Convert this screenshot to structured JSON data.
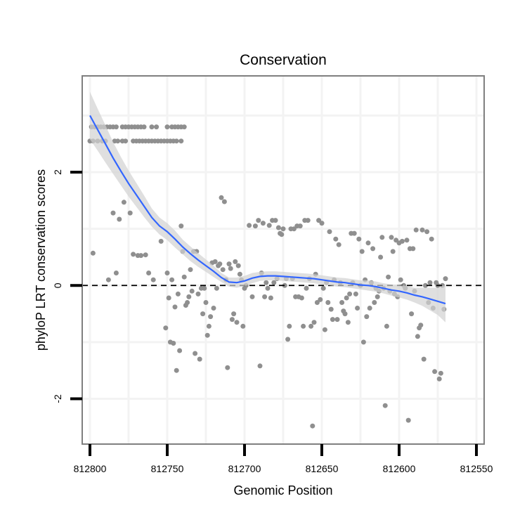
{
  "chart_data": {
    "type": "scatter",
    "title": "Conservation",
    "xlabel": "Genomic Position",
    "ylabel": "phyloP LRT conservation scores",
    "xlim": [
      812805,
      812545
    ],
    "x_reversed": true,
    "ylim": [
      -2.8,
      3.7
    ],
    "x_ticks": [
      812800,
      812750,
      812700,
      812650,
      812600,
      812550
    ],
    "x_tick_labels": [
      "812800",
      "812750",
      "812700",
      "812650",
      "812600",
      "812550"
    ],
    "y_ticks": [
      -2,
      0,
      2
    ],
    "y_tick_labels": [
      "-2",
      "0",
      "2"
    ],
    "grid": true,
    "reference_line": {
      "y": 0,
      "style": "dashed"
    },
    "colors": {
      "points": "#8f8f8f",
      "smooth_line": "#3366ff",
      "confidence_band": "#d2d2d2",
      "grid": "#f3f3f3",
      "panel_border": "#7f7f7f"
    },
    "series": [
      {
        "name": "phyloP LRT scores",
        "type": "scatter",
        "points": [
          [
            812799,
            2.8
          ],
          [
            812797,
            2.8
          ],
          [
            812795,
            2.8
          ],
          [
            812793,
            2.8
          ],
          [
            812791,
            2.8
          ],
          [
            812789,
            2.8
          ],
          [
            812787,
            2.8
          ],
          [
            812785,
            2.8
          ],
          [
            812783,
            2.8
          ],
          [
            812779,
            2.8
          ],
          [
            812777,
            2.8
          ],
          [
            812775,
            2.8
          ],
          [
            812773,
            2.8
          ],
          [
            812771,
            2.8
          ],
          [
            812769,
            2.8
          ],
          [
            812767,
            2.8
          ],
          [
            812765,
            2.8
          ],
          [
            812760,
            2.8
          ],
          [
            812757,
            2.8
          ],
          [
            812750,
            2.8
          ],
          [
            812747,
            2.8
          ],
          [
            812745,
            2.8
          ],
          [
            812743,
            2.8
          ],
          [
            812741,
            2.8
          ],
          [
            812739,
            2.8
          ],
          [
            812800,
            2.55
          ],
          [
            812798,
            2.55
          ],
          [
            812795,
            2.55
          ],
          [
            812792,
            2.55
          ],
          [
            812790,
            2.55
          ],
          [
            812784,
            2.55
          ],
          [
            812782,
            2.55
          ],
          [
            812779,
            2.55
          ],
          [
            812777,
            2.55
          ],
          [
            812772,
            2.55
          ],
          [
            812770,
            2.55
          ],
          [
            812768,
            2.55
          ],
          [
            812766,
            2.55
          ],
          [
            812764,
            2.55
          ],
          [
            812762,
            2.55
          ],
          [
            812760,
            2.55
          ],
          [
            812758,
            2.55
          ],
          [
            812756,
            2.55
          ],
          [
            812754,
            2.55
          ],
          [
            812752,
            2.55
          ],
          [
            812750,
            2.55
          ],
          [
            812748,
            2.55
          ],
          [
            812746,
            2.55
          ],
          [
            812744,
            2.55
          ],
          [
            812741,
            2.55
          ],
          [
            812798,
            0.57
          ],
          [
            812788,
            0.1
          ],
          [
            812785,
            1.28
          ],
          [
            812783,
            0.22
          ],
          [
            812781,
            1.17
          ],
          [
            812778,
            1.47
          ],
          [
            812774,
            1.28
          ],
          [
            812772,
            0.55
          ],
          [
            812769,
            0.53
          ],
          [
            812767,
            0.53
          ],
          [
            812764,
            0.54
          ],
          [
            812762,
            0.22
          ],
          [
            812759,
            0.1
          ],
          [
            812754,
            0.78
          ],
          [
            812751,
            -0.75
          ],
          [
            812750,
            0.22
          ],
          [
            812749,
            -0.22
          ],
          [
            812748,
            -1.0
          ],
          [
            812747,
            0.1
          ],
          [
            812746,
            -1.02
          ],
          [
            812745,
            -0.38
          ],
          [
            812744,
            -1.5
          ],
          [
            812743,
            -0.15
          ],
          [
            812742,
            -1.15
          ],
          [
            812741,
            1.05
          ],
          [
            812740,
            0.6
          ],
          [
            812739,
            0.15
          ],
          [
            812738,
            -0.35
          ],
          [
            812737,
            -0.3
          ],
          [
            812736,
            -0.2
          ],
          [
            812735,
            0.28
          ],
          [
            812734,
            -0.1
          ],
          [
            812733,
            0.6
          ],
          [
            812732,
            -1.2
          ],
          [
            812731,
            0.6
          ],
          [
            812730,
            -0.15
          ],
          [
            812729,
            -1.3
          ],
          [
            812728,
            -0.05
          ],
          [
            812727,
            -0.5
          ],
          [
            812726,
            -0.05
          ],
          [
            812725,
            -0.3
          ],
          [
            812724,
            -0.88
          ],
          [
            812723,
            -0.72
          ],
          [
            812722,
            -0.55
          ],
          [
            812721,
            0.4
          ],
          [
            812720,
            -0.4
          ],
          [
            812719,
            0.42
          ],
          [
            812718,
            -0.05
          ],
          [
            812717,
            0.35
          ],
          [
            812716,
            0.38
          ],
          [
            812715,
            1.55
          ],
          [
            812714,
            0.28
          ],
          [
            812713,
            1.48
          ],
          [
            812712,
            0.1
          ],
          [
            812711,
            -1.45
          ],
          [
            812710,
            0.38
          ],
          [
            812709,
            0.3
          ],
          [
            812708,
            -0.6
          ],
          [
            812707,
            -0.5
          ],
          [
            812706,
            0.42
          ],
          [
            812705,
            -0.65
          ],
          [
            812704,
            0.35
          ],
          [
            812703,
            0.2
          ],
          [
            812702,
            0.1
          ],
          [
            812701,
            -0.72
          ],
          [
            812700,
            -0.05
          ],
          [
            812699,
            0.0
          ],
          [
            812697,
            1.06
          ],
          [
            812695,
            -0.2
          ],
          [
            812693,
            1.05
          ],
          [
            812691,
            1.15
          ],
          [
            812690,
            -1.42
          ],
          [
            812689,
            0.22
          ],
          [
            812688,
            1.1
          ],
          [
            812687,
            -0.2
          ],
          [
            812686,
            0.05
          ],
          [
            812685,
            -0.05
          ],
          [
            812684,
            1.06
          ],
          [
            812683,
            -0.22
          ],
          [
            812682,
            1.15
          ],
          [
            812681,
            0.05
          ],
          [
            812680,
            1.15
          ],
          [
            812679,
            0.12
          ],
          [
            812678,
            1.02
          ],
          [
            812677,
            0.92
          ],
          [
            812676,
            0.9
          ],
          [
            812675,
            1.0
          ],
          [
            812674,
            0.0
          ],
          [
            812673,
            0.12
          ],
          [
            812672,
            -0.95
          ],
          [
            812671,
            -0.72
          ],
          [
            812670,
            1.0
          ],
          [
            812669,
            0.12
          ],
          [
            812668,
            1.0
          ],
          [
            812667,
            -0.2
          ],
          [
            812666,
            1.05
          ],
          [
            812665,
            -0.2
          ],
          [
            812664,
            1.05
          ],
          [
            812663,
            -0.22
          ],
          [
            812662,
            -0.72
          ],
          [
            812661,
            1.15
          ],
          [
            812660,
            -0.05
          ],
          [
            812659,
            1.15
          ],
          [
            812658,
            0.12
          ],
          [
            812657,
            -0.72
          ],
          [
            812656,
            -2.48
          ],
          [
            812655,
            -0.65
          ],
          [
            812654,
            0.2
          ],
          [
            812653,
            -0.3
          ],
          [
            812652,
            1.15
          ],
          [
            812651,
            -0.25
          ],
          [
            812650,
            1.1
          ],
          [
            812649,
            -0.05
          ],
          [
            812648,
            -0.78
          ],
          [
            812647,
            0.05
          ],
          [
            812646,
            -0.3
          ],
          [
            812645,
            0.95
          ],
          [
            812644,
            -0.42
          ],
          [
            812643,
            -0.6
          ],
          [
            812642,
            0.1
          ],
          [
            812641,
            0.82
          ],
          [
            812640,
            -0.6
          ],
          [
            812639,
            0.72
          ],
          [
            812638,
            0.05
          ],
          [
            812637,
            -0.3
          ],
          [
            812636,
            -0.45
          ],
          [
            812635,
            -0.5
          ],
          [
            812634,
            -0.22
          ],
          [
            812633,
            -0.65
          ],
          [
            812632,
            -0.15
          ],
          [
            812631,
            0.92
          ],
          [
            812630,
            0.05
          ],
          [
            812629,
            0.92
          ],
          [
            812628,
            -0.15
          ],
          [
            812627,
            -0.4
          ],
          [
            812626,
            0.82
          ],
          [
            812625,
            0.0
          ],
          [
            812624,
            0.6
          ],
          [
            812623,
            -1.0
          ],
          [
            812622,
            0.1
          ],
          [
            812621,
            -0.55
          ],
          [
            812620,
            0.75
          ],
          [
            812619,
            -0.4
          ],
          [
            812618,
            0.05
          ],
          [
            812617,
            0.65
          ],
          [
            812616,
            -0.3
          ],
          [
            812615,
            -0.05
          ],
          [
            812614,
            -0.2
          ],
          [
            812613,
            -0.1
          ],
          [
            812612,
            0.5
          ],
          [
            812611,
            0.85
          ],
          [
            812610,
            -0.05
          ],
          [
            812609,
            -2.12
          ],
          [
            812608,
            -0.72
          ],
          [
            812607,
            0.15
          ],
          [
            812606,
            -0.1
          ],
          [
            812605,
            0.85
          ],
          [
            812604,
            0.6
          ],
          [
            812603,
            -0.15
          ],
          [
            812602,
            0.8
          ],
          [
            812601,
            -0.2
          ],
          [
            812600,
            0.75
          ],
          [
            812599,
            0.1
          ],
          [
            812598,
            0.78
          ],
          [
            812597,
            0.0
          ],
          [
            812596,
            -0.05
          ],
          [
            812595,
            0.8
          ],
          [
            812594,
            -2.38
          ],
          [
            812593,
            0.65
          ],
          [
            812592,
            -0.5
          ],
          [
            812591,
            0.65
          ],
          [
            812590,
            -0.1
          ],
          [
            812589,
            0.98
          ],
          [
            812588,
            -0.9
          ],
          [
            812587,
            -0.75
          ],
          [
            812586,
            -0.7
          ],
          [
            812585,
            0.98
          ],
          [
            812584,
            -1.3
          ],
          [
            812583,
            0.0
          ],
          [
            812582,
            0.95
          ],
          [
            812581,
            -0.3
          ],
          [
            812580,
            0.05
          ],
          [
            812579,
            0.82
          ],
          [
            812578,
            -0.4
          ],
          [
            812577,
            -1.52
          ],
          [
            812576,
            0.05
          ],
          [
            812575,
            0.0
          ],
          [
            812574,
            -1.65
          ],
          [
            812573,
            -1.55
          ],
          [
            812572,
            0.0
          ],
          [
            812571,
            -0.42
          ],
          [
            812570,
            0.12
          ]
        ]
      },
      {
        "name": "loess fit",
        "type": "line",
        "x": [
          812800,
          812795,
          812790,
          812785,
          812780,
          812775,
          812770,
          812765,
          812760,
          812755,
          812750,
          812745,
          812740,
          812735,
          812730,
          812725,
          812720,
          812715,
          812710,
          812705,
          812700,
          812695,
          812690,
          812685,
          812680,
          812675,
          812670,
          812665,
          812660,
          812655,
          812650,
          812645,
          812640,
          812635,
          812630,
          812625,
          812620,
          812615,
          812610,
          812605,
          812600,
          812595,
          812590,
          812585,
          812580,
          812575,
          812570
        ],
        "y": [
          3.0,
          2.75,
          2.5,
          2.25,
          2.02,
          1.8,
          1.6,
          1.4,
          1.2,
          1.05,
          0.95,
          0.82,
          0.68,
          0.56,
          0.45,
          0.35,
          0.25,
          0.14,
          0.06,
          0.05,
          0.08,
          0.13,
          0.16,
          0.17,
          0.17,
          0.16,
          0.15,
          0.14,
          0.13,
          0.12,
          0.1,
          0.08,
          0.06,
          0.05,
          0.03,
          0.01,
          0.0,
          -0.02,
          -0.05,
          -0.08,
          -0.1,
          -0.13,
          -0.17,
          -0.2,
          -0.24,
          -0.28,
          -0.32
        ],
        "lower": [
          2.58,
          2.38,
          2.17,
          1.97,
          1.77,
          1.57,
          1.39,
          1.21,
          1.04,
          0.9,
          0.8,
          0.67,
          0.55,
          0.43,
          0.33,
          0.24,
          0.15,
          0.06,
          -0.02,
          -0.04,
          -0.01,
          0.04,
          0.08,
          0.09,
          0.09,
          0.08,
          0.07,
          0.06,
          0.05,
          0.04,
          0.02,
          0.0,
          -0.02,
          -0.03,
          -0.05,
          -0.07,
          -0.09,
          -0.11,
          -0.14,
          -0.18,
          -0.21,
          -0.25,
          -0.3,
          -0.36,
          -0.44,
          -0.52,
          -0.65
        ],
        "upper": [
          3.42,
          3.12,
          2.83,
          2.53,
          2.27,
          2.03,
          1.81,
          1.59,
          1.36,
          1.2,
          1.1,
          0.97,
          0.81,
          0.69,
          0.57,
          0.46,
          0.35,
          0.22,
          0.14,
          0.14,
          0.17,
          0.22,
          0.24,
          0.25,
          0.25,
          0.24,
          0.23,
          0.22,
          0.21,
          0.2,
          0.18,
          0.16,
          0.14,
          0.13,
          0.11,
          0.09,
          0.09,
          0.07,
          0.04,
          0.02,
          0.01,
          -0.01,
          -0.04,
          -0.04,
          -0.04,
          -0.04,
          0.01
        ]
      }
    ]
  }
}
